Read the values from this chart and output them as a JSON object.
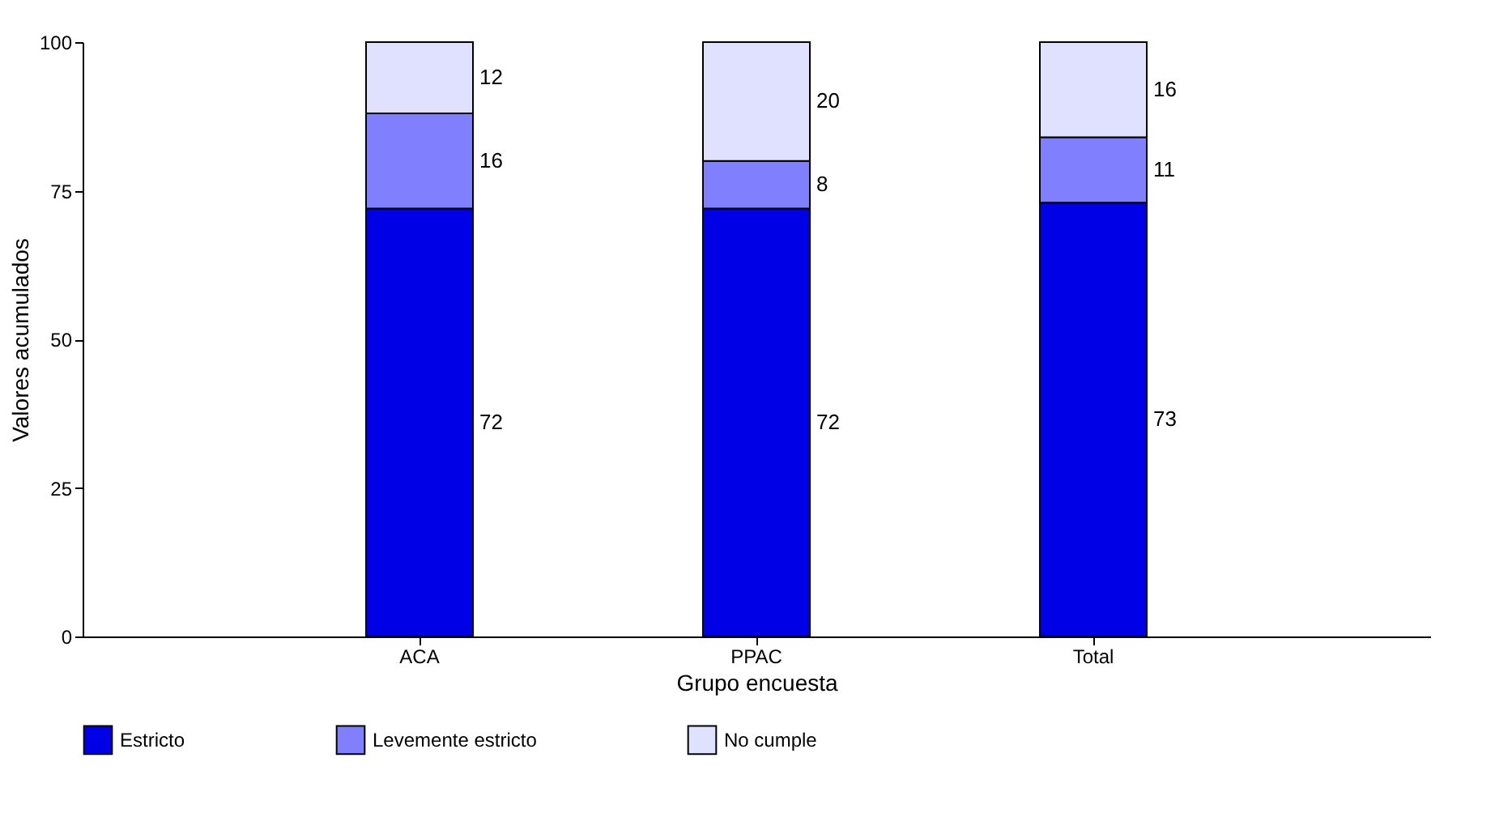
{
  "chart_data": {
    "type": "bar",
    "stacked": true,
    "xlabel": "Grupo encuesta",
    "ylabel": "Valores acumulados",
    "categories": [
      "ACA",
      "PPAC",
      "Total"
    ],
    "series": [
      {
        "name": "Estricto",
        "color": "#0000e6",
        "values": [
          72,
          72,
          73
        ]
      },
      {
        "name": "Levemente estricto",
        "color": "#8080ff",
        "values": [
          16,
          8,
          11
        ]
      },
      {
        "name": "No cumple",
        "color": "#e0e0ff",
        "values": [
          12,
          20,
          16
        ]
      }
    ],
    "ylim": [
      0,
      100
    ],
    "yticks": [
      0,
      25,
      50,
      75,
      100
    ],
    "grid": false,
    "legend": "bottom",
    "data_labels": true
  }
}
